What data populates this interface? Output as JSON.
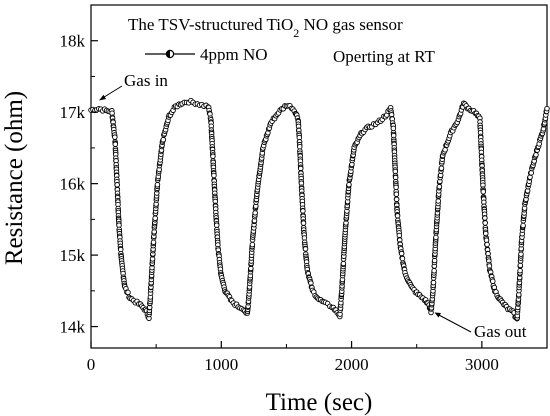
{
  "chart_data": {
    "type": "scatter",
    "title": "The TSV-structured TiO2 NO gas sensor",
    "title_parts": {
      "main": "The TSV-structured TiO",
      "sub": "2",
      "rest": " NO gas sensor"
    },
    "xlabel": "Time (sec)",
    "ylabel": "Resistance (ohm)",
    "xlim": [
      0,
      3500
    ],
    "ylim": [
      13700,
      18500
    ],
    "x_ticks": [
      0,
      1000,
      2000,
      3000
    ],
    "x_tick_labels": [
      "0",
      "1000",
      "2000",
      "3000"
    ],
    "y_ticks": [
      14000,
      15000,
      16000,
      17000,
      18000
    ],
    "y_tick_labels": [
      "14k",
      "15k",
      "16k",
      "17k",
      "18k"
    ],
    "grid": false,
    "legend": {
      "placement": "top-left",
      "symbol": "—◑—",
      "label": "4ppm NO"
    },
    "annotations": {
      "condition": "Operting at RT",
      "gas_in": "Gas in",
      "gas_out": "Gas out"
    },
    "marker": "open-circle",
    "series": [
      {
        "name": "4ppm NO",
        "keypoints": [
          [
            0,
            17030
          ],
          [
            60,
            17050
          ],
          [
            120,
            17020
          ],
          [
            160,
            17010
          ],
          [
            185,
            16600
          ],
          [
            200,
            16000
          ],
          [
            215,
            15400
          ],
          [
            235,
            14900
          ],
          [
            260,
            14550
          ],
          [
            300,
            14400
          ],
          [
            340,
            14350
          ],
          [
            380,
            14300
          ],
          [
            420,
            14230
          ],
          [
            445,
            14130
          ],
          [
            455,
            14400
          ],
          [
            480,
            15200
          ],
          [
            510,
            16000
          ],
          [
            550,
            16600
          ],
          [
            600,
            16950
          ],
          [
            650,
            17080
          ],
          [
            700,
            17130
          ],
          [
            750,
            17150
          ],
          [
            800,
            17130
          ],
          [
            850,
            17100
          ],
          [
            900,
            17080
          ],
          [
            920,
            16900
          ],
          [
            935,
            16400
          ],
          [
            955,
            15700
          ],
          [
            975,
            15100
          ],
          [
            1000,
            14700
          ],
          [
            1030,
            14500
          ],
          [
            1080,
            14350
          ],
          [
            1130,
            14280
          ],
          [
            1170,
            14250
          ],
          [
            1200,
            14170
          ],
          [
            1215,
            14500
          ],
          [
            1240,
            15200
          ],
          [
            1275,
            15900
          ],
          [
            1320,
            16500
          ],
          [
            1380,
            16850
          ],
          [
            1440,
            17000
          ],
          [
            1500,
            17100
          ],
          [
            1540,
            17070
          ],
          [
            1570,
            17000
          ],
          [
            1590,
            16900
          ],
          [
            1600,
            16600
          ],
          [
            1615,
            16000
          ],
          [
            1635,
            15300
          ],
          [
            1660,
            14800
          ],
          [
            1700,
            14500
          ],
          [
            1750,
            14380
          ],
          [
            1800,
            14320
          ],
          [
            1850,
            14280
          ],
          [
            1890,
            14200
          ],
          [
            1910,
            14150
          ],
          [
            1925,
            14500
          ],
          [
            1950,
            15300
          ],
          [
            1980,
            16000
          ],
          [
            2020,
            16500
          ],
          [
            2080,
            16720
          ],
          [
            2140,
            16800
          ],
          [
            2200,
            16850
          ],
          [
            2260,
            16950
          ],
          [
            2300,
            17050
          ],
          [
            2320,
            16800
          ],
          [
            2335,
            16200
          ],
          [
            2350,
            15600
          ],
          [
            2375,
            15100
          ],
          [
            2410,
            14750
          ],
          [
            2460,
            14550
          ],
          [
            2510,
            14450
          ],
          [
            2560,
            14380
          ],
          [
            2595,
            14300
          ],
          [
            2610,
            14200
          ],
          [
            2625,
            14500
          ],
          [
            2645,
            15200
          ],
          [
            2670,
            15900
          ],
          [
            2700,
            16400
          ],
          [
            2760,
            16700
          ],
          [
            2820,
            16900
          ],
          [
            2860,
            17120
          ],
          [
            2900,
            17050
          ],
          [
            2950,
            17000
          ],
          [
            2985,
            16900
          ],
          [
            2995,
            16500
          ],
          [
            3010,
            15900
          ],
          [
            3030,
            15300
          ],
          [
            3060,
            14800
          ],
          [
            3100,
            14500
          ],
          [
            3150,
            14350
          ],
          [
            3200,
            14250
          ],
          [
            3240,
            14200
          ],
          [
            3270,
            14100
          ],
          [
            3285,
            14500
          ],
          [
            3305,
            15200
          ],
          [
            3330,
            15700
          ],
          [
            3370,
            16100
          ],
          [
            3420,
            16450
          ],
          [
            3470,
            16750
          ],
          [
            3500,
            17050
          ]
        ]
      }
    ]
  }
}
